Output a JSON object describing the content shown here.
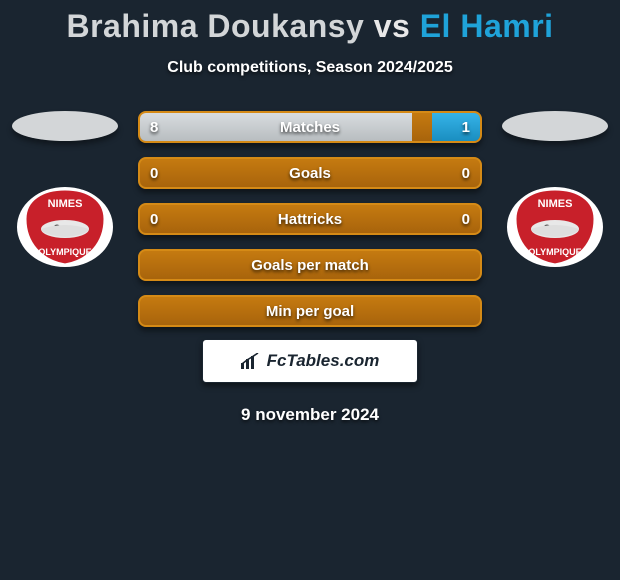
{
  "title": {
    "player1": "Brahima Doukansy",
    "vs": "vs",
    "player2": "El Hamri",
    "player1_color": "#d3d6d8",
    "vs_color": "#e8e8e8",
    "player2_color": "#1fa3d9",
    "fontsize": 32
  },
  "subtitle": "Club competitions, Season 2024/2025",
  "bars": {
    "border_color": "#d58a16",
    "empty_gradient_top": "#c57a10",
    "empty_gradient_bottom": "#a8640c",
    "rows": [
      {
        "label": "Matches",
        "left_val": "8",
        "right_val": "1",
        "left_pct": 80,
        "right_pct": 14,
        "left_fill": "linear-gradient(#d8dcdf,#b8bdc0)",
        "right_fill": "linear-gradient(#35b3e8,#1a8ec0)"
      },
      {
        "label": "Goals",
        "left_val": "0",
        "right_val": "0",
        "left_pct": 0,
        "right_pct": 0,
        "left_fill": "",
        "right_fill": ""
      },
      {
        "label": "Hattricks",
        "left_val": "0",
        "right_val": "0",
        "left_pct": 0,
        "right_pct": 0,
        "left_fill": "",
        "right_fill": ""
      },
      {
        "label": "Goals per match",
        "left_val": "",
        "right_val": "",
        "left_pct": 0,
        "right_pct": 0,
        "left_fill": "",
        "right_fill": ""
      },
      {
        "label": "Min per goal",
        "left_val": "",
        "right_val": "",
        "left_pct": 0,
        "right_pct": 0,
        "left_fill": "",
        "right_fill": ""
      }
    ]
  },
  "club": {
    "name_top": "NIMES",
    "name_bottom": "OLYMPIQUE",
    "shield_fill": "#c8202a",
    "shield_stroke": "#ffffff",
    "text_color": "#ffffff"
  },
  "brand": {
    "text": "FcTables.com",
    "text_color": "#1a2530",
    "bg": "#ffffff"
  },
  "date": "9 november 2024",
  "background_color": "#1a2530"
}
